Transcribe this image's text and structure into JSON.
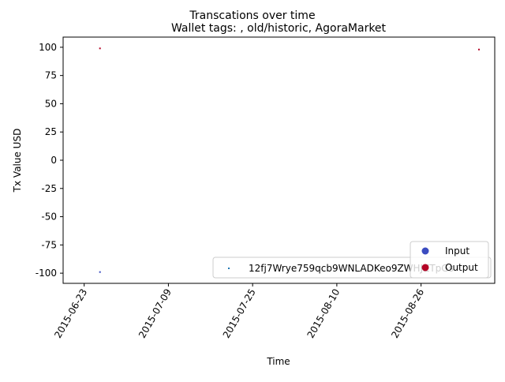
{
  "chart_data": {
    "type": "scatter",
    "title": "Transcations over time",
    "subtitle": "Wallet tags: , old/historic, AgoraMarket",
    "xlabel": "Time",
    "ylabel": "Tx Value USD",
    "x_type": "date",
    "xlim": [
      "2015-06-19",
      "2015-09-09"
    ],
    "ylim": [
      -109,
      109
    ],
    "xticks": [
      "2015-06-23",
      "2015-07-09",
      "2015-07-25",
      "2015-08-10",
      "2015-08-26"
    ],
    "yticks": [
      100,
      75,
      50,
      25,
      0,
      -25,
      -50,
      -75,
      -100
    ],
    "grid": false,
    "series": [
      {
        "name": "Output",
        "color": "#b40426",
        "points": [
          {
            "x": "2015-06-26",
            "y": 99
          },
          {
            "x": "2015-09-06",
            "y": 98
          }
        ]
      },
      {
        "name": "Input",
        "color": "#3b4cc0",
        "points": [
          {
            "x": "2015-06-26",
            "y": -99
          }
        ]
      }
    ],
    "legend_color": {
      "placement": "lower-right",
      "entries": [
        {
          "label": "Input",
          "color": "#3b4cc0"
        },
        {
          "label": "Output",
          "color": "#b40426"
        }
      ]
    },
    "legend_wallet": {
      "placement": "lower-right",
      "label": "12fj7Wrye759qcb9WNLADKeo9ZWHJZTpGs",
      "color": "#1f77b4"
    }
  }
}
